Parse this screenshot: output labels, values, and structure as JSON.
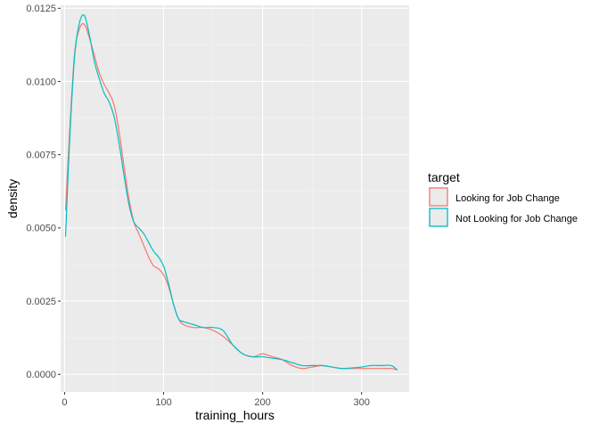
{
  "chart_data": {
    "type": "line",
    "subtype": "density",
    "xlabel": "training_hours",
    "ylabel": "density",
    "xlim": [
      -4,
      348
    ],
    "ylim": [
      -0.0006,
      0.0126
    ],
    "xticks": [
      0,
      100,
      200,
      300
    ],
    "yticks": [
      0.0,
      0.0025,
      0.005,
      0.0075,
      0.01,
      0.0125
    ],
    "xtick_labels": [
      "0",
      "100",
      "200",
      "300"
    ],
    "ytick_labels": [
      "0.0000",
      "0.0025",
      "0.0050",
      "0.0075",
      "0.0100",
      "0.0125"
    ],
    "grid": true,
    "legend": {
      "title": "target",
      "position": "right"
    },
    "series": [
      {
        "name": "Looking for Job Change",
        "color": "#F8766D",
        "x": [
          1,
          5,
          10,
          15,
          20,
          25,
          30,
          35,
          40,
          45,
          50,
          55,
          60,
          65,
          70,
          75,
          80,
          85,
          90,
          95,
          100,
          105,
          110,
          115,
          120,
          130,
          140,
          150,
          160,
          170,
          180,
          190,
          200,
          210,
          220,
          230,
          240,
          250,
          260,
          270,
          280,
          290,
          300,
          310,
          320,
          330,
          336
        ],
        "y": [
          0.0056,
          0.0082,
          0.0109,
          0.0118,
          0.01195,
          0.0115,
          0.0109,
          0.0103,
          0.0099,
          0.0096,
          0.0092,
          0.0083,
          0.0071,
          0.006,
          0.0052,
          0.0048,
          0.0044,
          0.004,
          0.0037,
          0.0036,
          0.0034,
          0.003,
          0.0024,
          0.0019,
          0.0017,
          0.0016,
          0.0016,
          0.0015,
          0.0013,
          0.001,
          0.0007,
          0.0006,
          0.0007,
          0.0006,
          0.0005,
          0.0003,
          0.0002,
          0.00025,
          0.0003,
          0.00025,
          0.0002,
          0.0002,
          0.0002,
          0.0002,
          0.0002,
          0.0002,
          0.00015
        ]
      },
      {
        "name": "Not Looking for Job Change",
        "color": "#00BFC4",
        "x": [
          1,
          5,
          10,
          15,
          20,
          25,
          30,
          35,
          40,
          45,
          50,
          55,
          60,
          65,
          70,
          75,
          80,
          85,
          90,
          95,
          100,
          105,
          110,
          115,
          120,
          130,
          140,
          150,
          160,
          170,
          180,
          190,
          200,
          210,
          220,
          230,
          240,
          250,
          260,
          270,
          280,
          290,
          300,
          310,
          320,
          330,
          336
        ],
        "y": [
          0.0047,
          0.0079,
          0.0108,
          0.012,
          0.01225,
          0.0116,
          0.0107,
          0.0101,
          0.0096,
          0.0093,
          0.0088,
          0.0079,
          0.0068,
          0.0058,
          0.0052,
          0.005,
          0.0048,
          0.0045,
          0.0042,
          0.004,
          0.0037,
          0.0031,
          0.0024,
          0.0019,
          0.0018,
          0.0017,
          0.0016,
          0.0016,
          0.0015,
          0.001,
          0.0007,
          0.0006,
          0.0006,
          0.00055,
          0.0005,
          0.0004,
          0.0003,
          0.0003,
          0.0003,
          0.00025,
          0.0002,
          0.00022,
          0.00025,
          0.0003,
          0.0003,
          0.0003,
          0.00015
        ]
      }
    ]
  }
}
